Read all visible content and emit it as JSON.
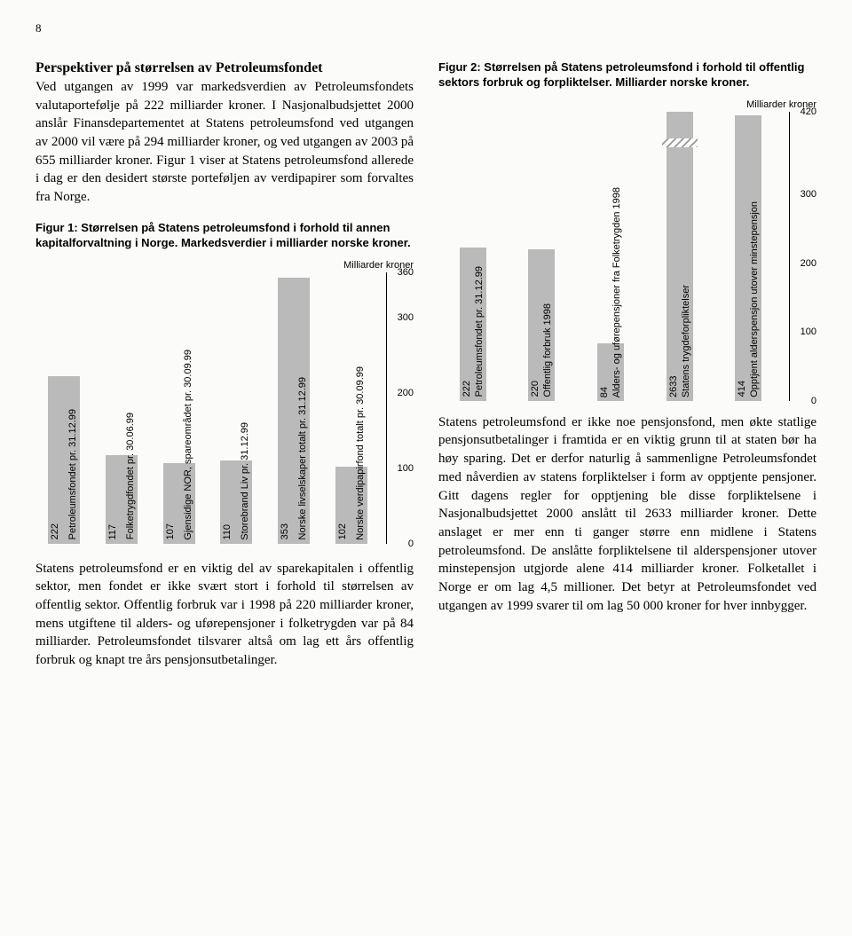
{
  "page_number": "8",
  "left": {
    "heading": "Perspektiver på størrelsen av Petroleumsfondet",
    "para1": "Ved utgangen av 1999 var markedsverdien av Petroleumsfondets valutaportefølje på 222 milliarder kroner. I Nasjonalbudsjettet 2000 anslår Finansdepartementet at Statens petroleumsfond ved utgangen av 2000 vil være på 294 milliarder kroner, og ved utgangen av 2003 på 655 milliarder kroner. Figur 1 viser at Statens petroleumsfond allerede i dag er den desidert største porteføljen av verdipapirer som forvaltes fra Norge.",
    "fig1_caption": "Figur 1: Størrelsen på Statens petroleumsfond i forhold til annen kapitalforvaltning i Norge. Markedsverdier i milliarder norske kroner.",
    "chart1": {
      "unit": "Milliarder kroner",
      "ymax": 360,
      "yticks": [
        360,
        300,
        200,
        100,
        0
      ],
      "bar_color": "#bababa",
      "bars": [
        {
          "label": "Petroleumsfondet pr. 31.12.99",
          "value": 222
        },
        {
          "label": "Folketrygdfondet pr. 30.06.99",
          "value": 117
        },
        {
          "label": "Gjensidige NOR, spareområdet pr. 30.09.99",
          "value": 107
        },
        {
          "label": "Storebrand Liv pr. 31.12.99",
          "value": 110
        },
        {
          "label": "Norske livselskaper totalt pr. 31.12.99",
          "value": 353
        },
        {
          "label": "Norske verdipapirfond totalt pr. 30.09.99",
          "value": 102
        }
      ]
    },
    "para2": "Statens petroleumsfond er en viktig del av sparekapitalen i offentlig sektor, men fondet er ikke svært stort i forhold til størrelsen av offentlig sektor. Offentlig forbruk var i 1998 på 220 milliarder kroner, mens utgiftene til alders- og uførepensjoner i folketrygden var på 84 milliarder. Petroleumsfondet tilsvarer altså om lag ett års offentlig forbruk og knapt tre års pensjonsutbetalinger."
  },
  "right": {
    "fig2_caption": "Figur 2: Størrelsen på Statens petroleumsfond i forhold til offentlig sektors forbruk og forpliktelser. Milliarder norske kroner.",
    "chart2": {
      "unit": "Milliarder kroner",
      "ymax": 420,
      "yticks": [
        420,
        300,
        200,
        100,
        0
      ],
      "bar_color": "#bababa",
      "bars": [
        {
          "label": "Petroleumsfondet pr. 31.12.99",
          "value": 222,
          "break": false
        },
        {
          "label": "Offentlig forbruk 1998",
          "value": 220,
          "break": false
        },
        {
          "label": "Alders- og uførepensjoner fra Folketrygden 1998",
          "value": 84,
          "break": false
        },
        {
          "label": "Statens trygdeforpliktelser",
          "value": 2633,
          "break": true,
          "display_height": 420
        },
        {
          "label": "Opptjent alderspensjon utover minstepensjon",
          "value": 414,
          "break": false
        }
      ]
    },
    "para1": "Statens petroleumsfond er ikke noe pensjonsfond, men økte statlige pensjonsutbetalinger i framtida er en viktig grunn til at staten bør ha høy sparing. Det er derfor naturlig å sammenligne Petroleumsfondet med nåverdien av statens forpliktelser i form av opptjente pensjoner. Gitt dagens regler for opptjening ble disse forpliktelsene i Nasjonalbudsjettet 2000 anslått til 2633 milliarder kroner. Dette anslaget er mer enn ti ganger større enn midlene i Statens petroleumsfond. De anslåtte forpliktelsene til alderspensjoner utover minstepensjon utgjorde alene 414 milliarder kroner. Folketallet i Norge er om lag 4,5 millioner. Det betyr at Petroleumsfondet ved utgangen av 1999 svarer til om lag 50 000 kroner for hver innbygger."
  }
}
